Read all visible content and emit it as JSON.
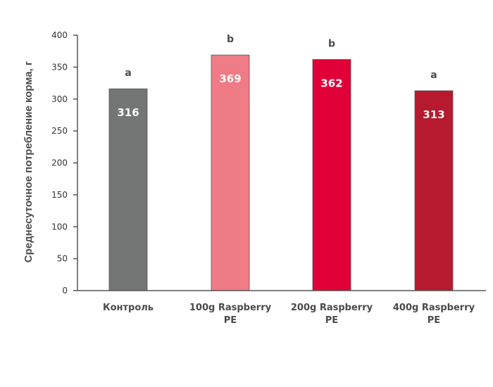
{
  "chart_data": {
    "type": "bar",
    "ylabel": "Среднесуточное потребление корма, г",
    "xlabel": "",
    "ylim": [
      0,
      400
    ],
    "yticks": [
      0,
      50,
      100,
      150,
      200,
      250,
      300,
      350,
      400
    ],
    "grid": false,
    "categories": [
      [
        "Контроль"
      ],
      [
        "100g Raspberry",
        "PE"
      ],
      [
        "200g Raspberry",
        "PE"
      ],
      [
        "400g Raspberry",
        "PE"
      ]
    ],
    "values": [
      316,
      369,
      362,
      313
    ],
    "data_labels": [
      "316",
      "369",
      "362",
      "313"
    ],
    "significance": [
      "a",
      "b",
      "b",
      "a"
    ],
    "colors": [
      "#737675",
      "#ee7b85",
      "#e10037",
      "#b7192e"
    ]
  }
}
